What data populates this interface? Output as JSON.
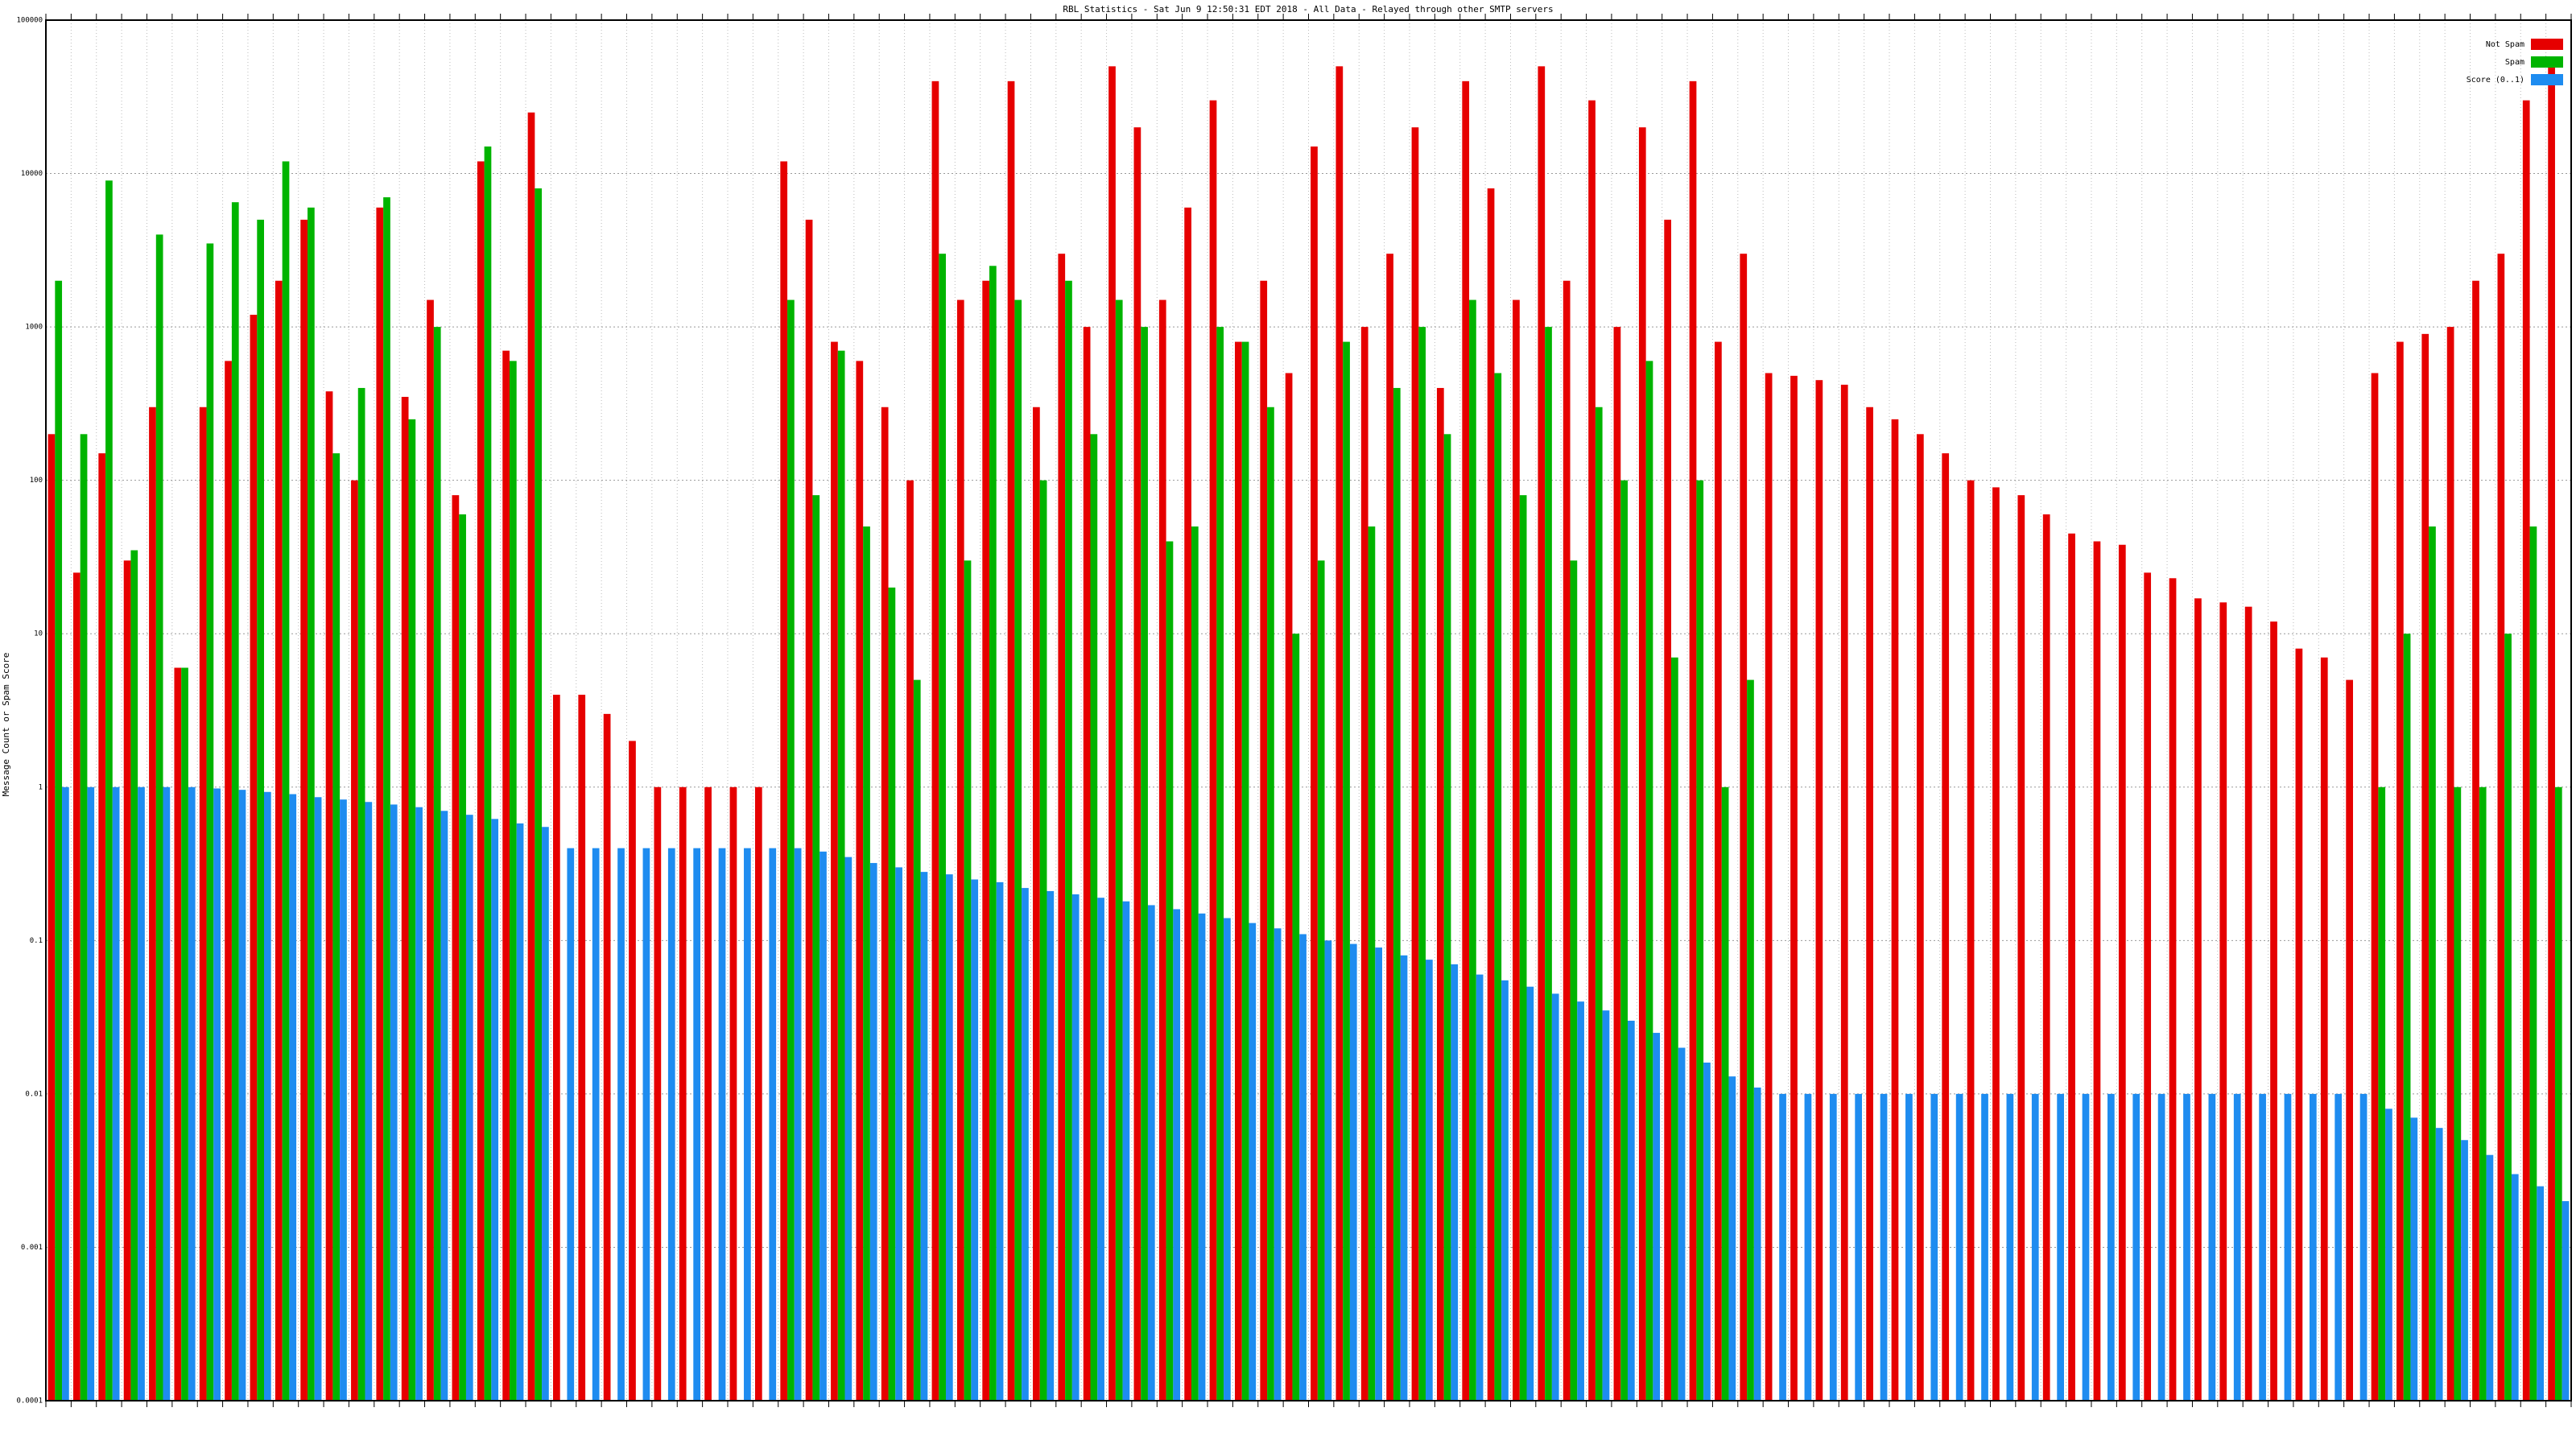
{
  "chart_data": {
    "type": "bar",
    "title": "RBL Statistics - Sat Jun  9 12:50:31 EDT 2018 - All Data - Relayed through other SMTP servers",
    "y_label": "Message Count or Spam Score",
    "log_scale": true,
    "grid": true,
    "legend": "top-right",
    "ylim": [
      0.0001,
      100000
    ],
    "yticks": [
      0.0001,
      0.001,
      0.01,
      0.1,
      1,
      10,
      100,
      1000,
      10000,
      100000
    ],
    "series": [
      {
        "name": "Not Spam",
        "color": "#e60000",
        "values": [
          200,
          25,
          150,
          30,
          300,
          6,
          300,
          600,
          1200,
          2000,
          5000,
          380,
          100,
          6000,
          350,
          1500,
          80,
          12000,
          700,
          25000,
          4,
          4,
          3,
          2,
          1,
          1,
          1,
          1,
          1,
          12000,
          5000,
          800,
          600,
          300,
          100,
          40000,
          1500,
          2000,
          40000,
          300,
          3000,
          1000,
          50000,
          20000,
          1500,
          6000,
          30000,
          800,
          2000,
          500,
          15000,
          50000,
          1000,
          3000,
          20000,
          400,
          40000,
          8000,
          1500,
          50000,
          2000,
          30000,
          1000,
          20000,
          5000,
          40000,
          800,
          3000,
          500,
          480,
          450,
          420,
          300,
          250,
          200,
          150,
          100,
          90,
          80,
          60,
          45,
          40,
          38,
          25,
          23,
          17,
          16,
          15,
          12,
          8,
          7,
          5,
          500,
          800,
          900,
          1000,
          2000,
          3000,
          30000,
          50000
        ]
      },
      {
        "name": "Spam",
        "color": "#00b400",
        "values": [
          2000,
          200,
          9000,
          35,
          4000,
          6,
          3500,
          6500,
          5000,
          12000,
          6000,
          150,
          400,
          7000,
          250,
          1000,
          60,
          15000,
          600,
          8000,
          null,
          null,
          null,
          null,
          null,
          null,
          null,
          null,
          null,
          1500,
          80,
          700,
          50,
          20,
          5,
          3000,
          30,
          2500,
          1500,
          100,
          2000,
          200,
          1500,
          1000,
          40,
          50,
          1000,
          800,
          300,
          10,
          30,
          800,
          50,
          400,
          1000,
          200,
          1500,
          500,
          80,
          1000,
          30,
          300,
          100,
          600,
          7,
          100,
          1,
          5,
          null,
          null,
          null,
          null,
          null,
          null,
          null,
          null,
          null,
          null,
          null,
          null,
          null,
          null,
          null,
          null,
          null,
          null,
          null,
          null,
          null,
          null,
          null,
          null,
          1,
          10,
          50,
          1,
          1,
          10,
          50,
          1
        ]
      },
      {
        "name": "Score (0..1)",
        "color": "#1e8cf0",
        "values": [
          1,
          1,
          1,
          1,
          1,
          1,
          0.98,
          0.96,
          0.93,
          0.9,
          0.86,
          0.83,
          0.8,
          0.77,
          0.74,
          0.7,
          0.66,
          0.62,
          0.58,
          0.55,
          0.4,
          0.4,
          0.4,
          0.4,
          0.4,
          0.4,
          0.4,
          0.4,
          0.4,
          0.4,
          0.38,
          0.35,
          0.32,
          0.3,
          0.28,
          0.27,
          0.25,
          0.24,
          0.22,
          0.21,
          0.2,
          0.19,
          0.18,
          0.17,
          0.16,
          0.15,
          0.14,
          0.13,
          0.12,
          0.11,
          0.1,
          0.095,
          0.09,
          0.08,
          0.075,
          0.07,
          0.06,
          0.055,
          0.05,
          0.045,
          0.04,
          0.035,
          0.03,
          0.025,
          0.02,
          0.016,
          0.013,
          0.011,
          0.01,
          0.01,
          0.01,
          0.01,
          0.01,
          0.01,
          0.01,
          0.01,
          0.01,
          0.01,
          0.01,
          0.01,
          0.01,
          0.01,
          0.01,
          0.01,
          0.01,
          0.01,
          0.01,
          0.01,
          0.01,
          0.01,
          0.01,
          0.01,
          0.008,
          0.007,
          0.006,
          0.005,
          0.004,
          0.003,
          0.0025,
          0.002
        ]
      }
    ]
  }
}
